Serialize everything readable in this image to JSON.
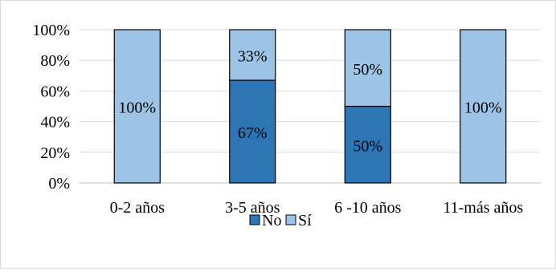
{
  "chart_data": {
    "type": "bar",
    "stacked": true,
    "percent_stacked": true,
    "categories": [
      "0-2 años",
      "3-5 años",
      "6 -10 años",
      "11-más años"
    ],
    "series": [
      {
        "name": "No",
        "values": [
          0,
          67,
          50,
          0
        ],
        "labels": [
          "",
          "67%",
          "50%",
          ""
        ],
        "color": "#2e75b6"
      },
      {
        "name": "Sí",
        "values": [
          100,
          33,
          50,
          100
        ],
        "labels": [
          "100%",
          "33%",
          "50%",
          "100%"
        ],
        "color": "#9dc3e6"
      }
    ],
    "ylim": [
      0,
      100
    ],
    "y_ticks": [
      "0%",
      "20%",
      "40%",
      "60%",
      "80%",
      "100%"
    ],
    "grid": true,
    "legend_position": "bottom",
    "bar_outline": "#000000"
  }
}
